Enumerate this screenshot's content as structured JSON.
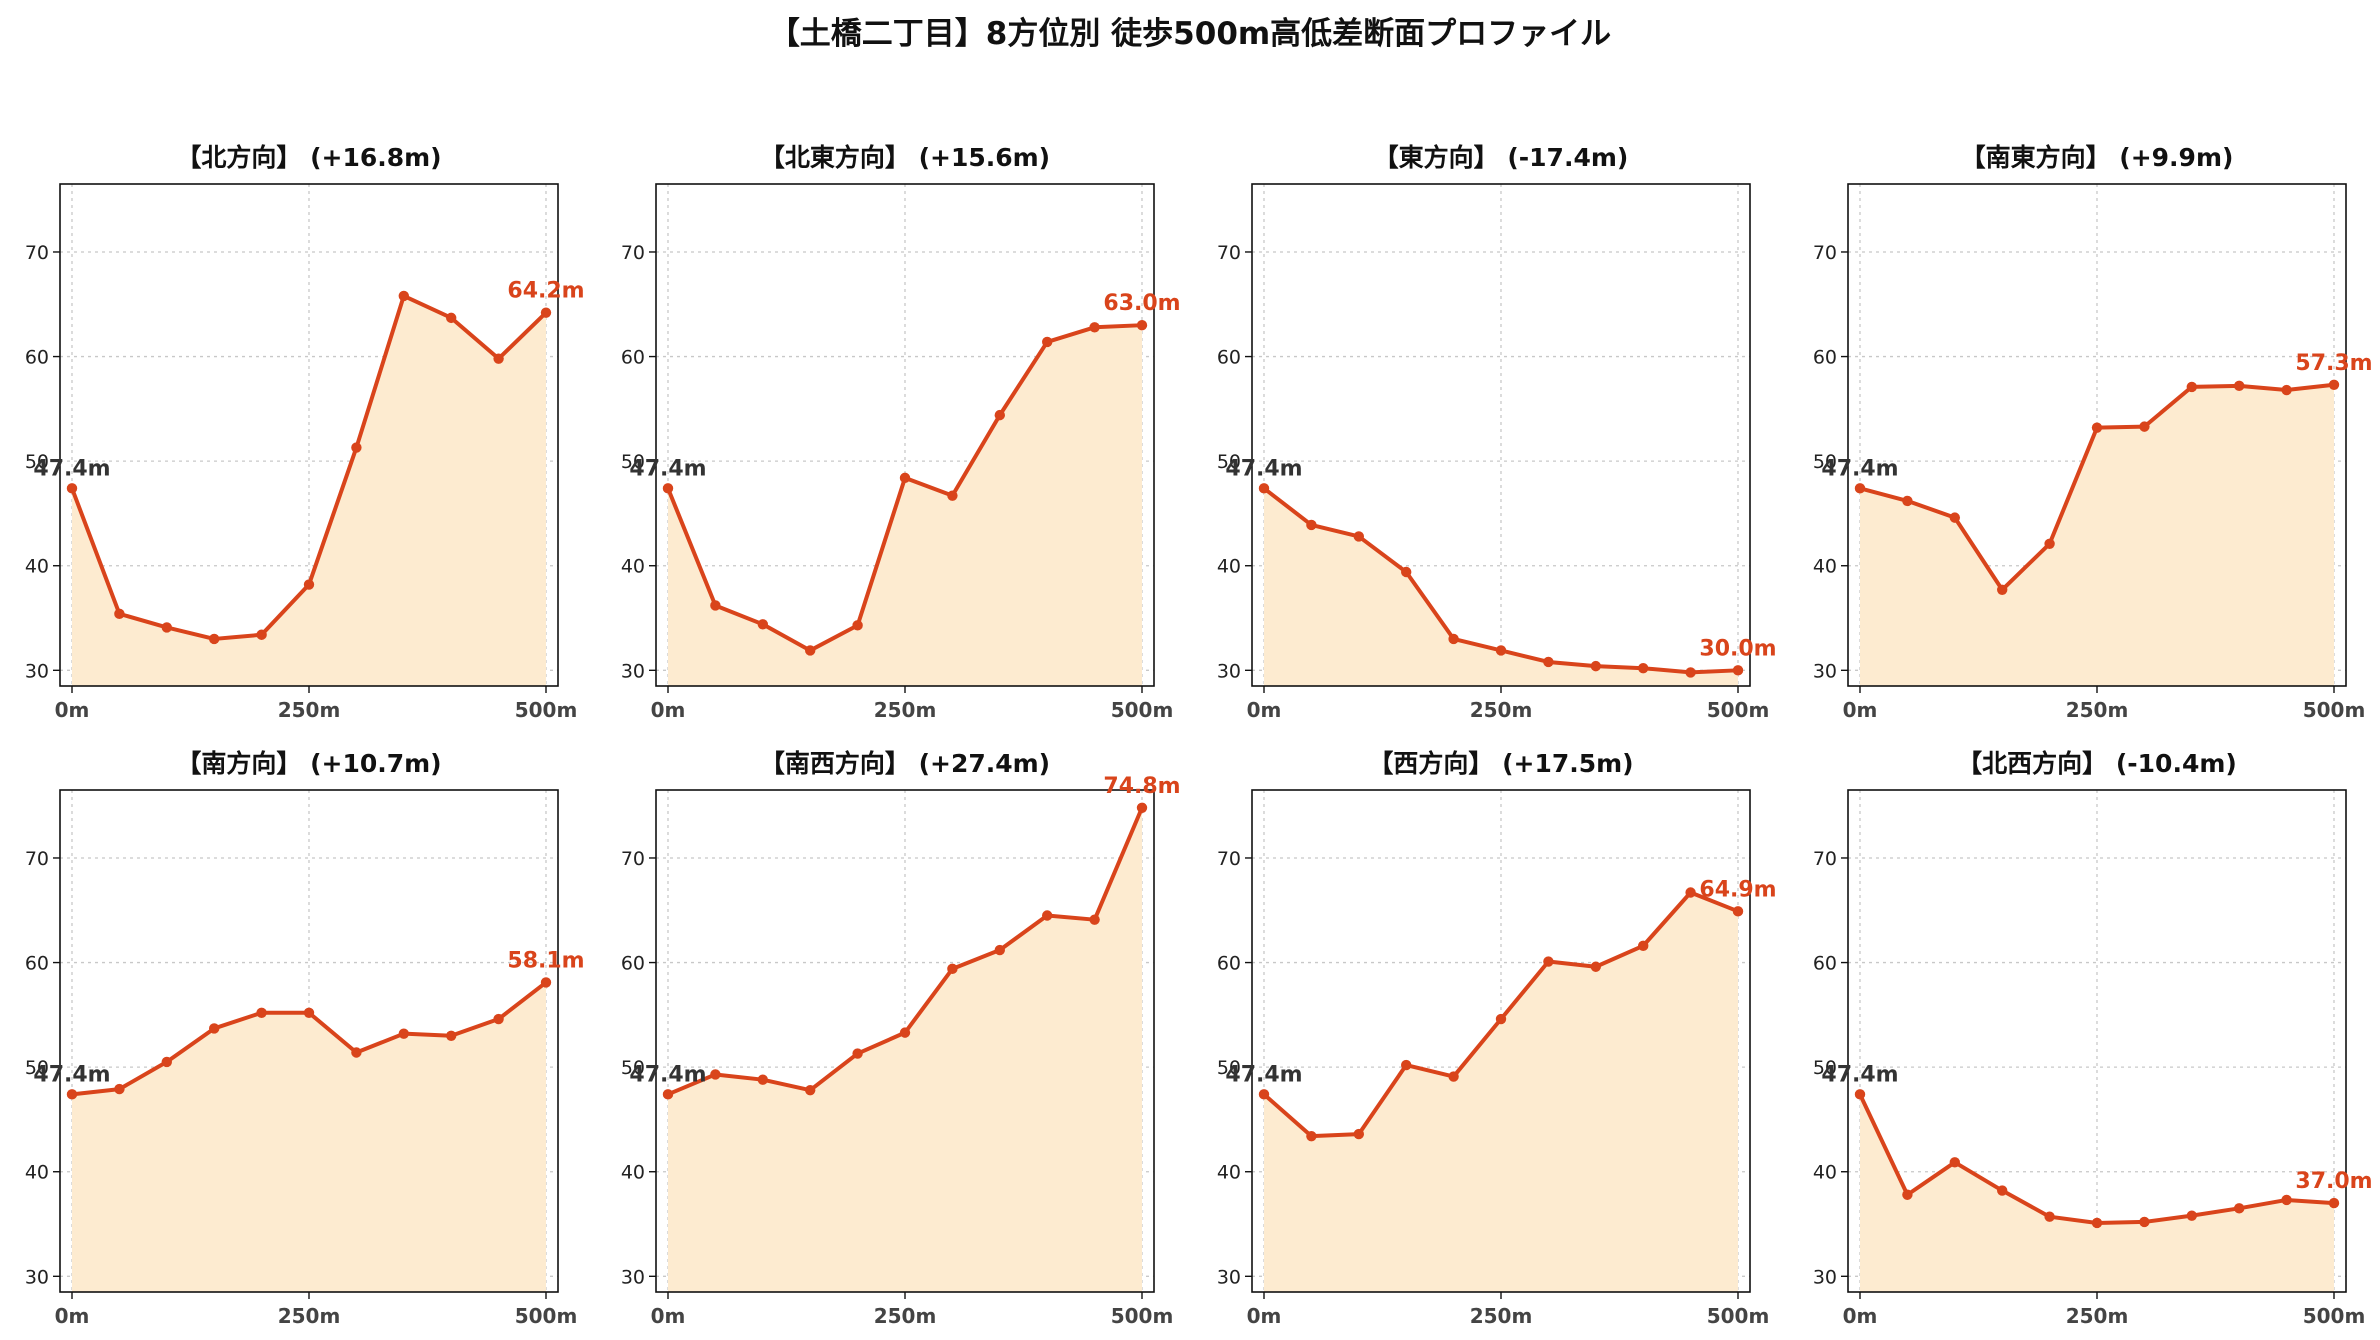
{
  "title": "【土橋二丁目】8方位別 徒歩500m高低差断面プロファイル",
  "colors": {
    "line": "#d9441b",
    "fill": "#fdebd0",
    "start_label": "#333333",
    "end_label": "#d9441b"
  },
  "chart_data": [
    {
      "type": "area",
      "title": "【北方向】 (+16.8m)",
      "x": [
        0,
        50,
        100,
        150,
        200,
        250,
        300,
        350,
        400,
        450,
        500
      ],
      "y": [
        47.4,
        35.4,
        34.1,
        33.0,
        33.4,
        38.2,
        51.3,
        65.8,
        63.7,
        59.8,
        64.2
      ],
      "start_label": "47.4m",
      "end_label": "64.2m",
      "xticks": [
        "0m",
        "250m",
        "500m"
      ],
      "yticks": [
        "30",
        "40",
        "50",
        "60",
        "70"
      ],
      "ylim": [
        28.5,
        76.5
      ],
      "grid": true
    },
    {
      "type": "area",
      "title": "【北東方向】 (+15.6m)",
      "x": [
        0,
        50,
        100,
        150,
        200,
        250,
        300,
        350,
        400,
        450,
        500
      ],
      "y": [
        47.4,
        36.2,
        34.4,
        31.9,
        34.3,
        48.4,
        46.7,
        54.4,
        61.4,
        62.8,
        63.0
      ],
      "start_label": "47.4m",
      "end_label": "63.0m",
      "xticks": [
        "0m",
        "250m",
        "500m"
      ],
      "yticks": [
        "30",
        "40",
        "50",
        "60",
        "70"
      ],
      "ylim": [
        28.5,
        76.5
      ],
      "grid": true
    },
    {
      "type": "area",
      "title": "【東方向】 (-17.4m)",
      "x": [
        0,
        50,
        100,
        150,
        200,
        250,
        300,
        350,
        400,
        450,
        500
      ],
      "y": [
        47.4,
        43.9,
        42.8,
        39.4,
        33.0,
        31.9,
        30.8,
        30.4,
        30.2,
        29.8,
        30.0
      ],
      "start_label": "47.4m",
      "end_label": "30.0m",
      "xticks": [
        "0m",
        "250m",
        "500m"
      ],
      "yticks": [
        "30",
        "40",
        "50",
        "60",
        "70"
      ],
      "ylim": [
        28.5,
        76.5
      ],
      "grid": true
    },
    {
      "type": "area",
      "title": "【南東方向】 (+9.9m)",
      "x": [
        0,
        50,
        100,
        150,
        200,
        250,
        300,
        350,
        400,
        450,
        500
      ],
      "y": [
        47.4,
        46.2,
        44.6,
        37.7,
        42.1,
        53.2,
        53.3,
        57.1,
        57.2,
        56.8,
        57.3
      ],
      "start_label": "47.4m",
      "end_label": "57.3m",
      "xticks": [
        "0m",
        "250m",
        "500m"
      ],
      "yticks": [
        "30",
        "40",
        "50",
        "60",
        "70"
      ],
      "ylim": [
        28.5,
        76.5
      ],
      "grid": true
    },
    {
      "type": "area",
      "title": "【南方向】 (+10.7m)",
      "x": [
        0,
        50,
        100,
        150,
        200,
        250,
        300,
        350,
        400,
        450,
        500
      ],
      "y": [
        47.4,
        47.9,
        50.5,
        53.7,
        55.2,
        55.2,
        51.4,
        53.2,
        53.0,
        54.6,
        58.1
      ],
      "start_label": "47.4m",
      "end_label": "58.1m",
      "xticks": [
        "0m",
        "250m",
        "500m"
      ],
      "yticks": [
        "30",
        "40",
        "50",
        "60",
        "70"
      ],
      "ylim": [
        28.5,
        76.5
      ],
      "grid": true
    },
    {
      "type": "area",
      "title": "【南西方向】 (+27.4m)",
      "x": [
        0,
        50,
        100,
        150,
        200,
        250,
        300,
        350,
        400,
        450,
        500
      ],
      "y": [
        47.4,
        49.3,
        48.8,
        47.8,
        51.3,
        53.3,
        59.4,
        61.2,
        64.5,
        64.1,
        74.8
      ],
      "start_label": "47.4m",
      "end_label": "74.8m",
      "xticks": [
        "0m",
        "250m",
        "500m"
      ],
      "yticks": [
        "30",
        "40",
        "50",
        "60",
        "70"
      ],
      "ylim": [
        28.5,
        76.5
      ],
      "grid": true
    },
    {
      "type": "area",
      "title": "【西方向】 (+17.5m)",
      "x": [
        0,
        50,
        100,
        150,
        200,
        250,
        300,
        350,
        400,
        450,
        500
      ],
      "y": [
        47.4,
        43.4,
        43.6,
        50.2,
        49.1,
        54.6,
        60.1,
        59.6,
        61.6,
        66.7,
        64.9
      ],
      "start_label": "47.4m",
      "end_label": "64.9m",
      "xticks": [
        "0m",
        "250m",
        "500m"
      ],
      "yticks": [
        "30",
        "40",
        "50",
        "60",
        "70"
      ],
      "ylim": [
        28.5,
        76.5
      ],
      "grid": true
    },
    {
      "type": "area",
      "title": "【北西方向】 (-10.4m)",
      "x": [
        0,
        50,
        100,
        150,
        200,
        250,
        300,
        350,
        400,
        450,
        500
      ],
      "y": [
        47.4,
        37.8,
        40.9,
        38.2,
        35.7,
        35.1,
        35.2,
        35.8,
        36.5,
        37.3,
        37.0
      ],
      "start_label": "47.4m",
      "end_label": "37.0m",
      "xticks": [
        "0m",
        "250m",
        "500m"
      ],
      "yticks": [
        "30",
        "40",
        "50",
        "60",
        "70"
      ],
      "ylim": [
        28.5,
        76.5
      ],
      "grid": true
    }
  ]
}
